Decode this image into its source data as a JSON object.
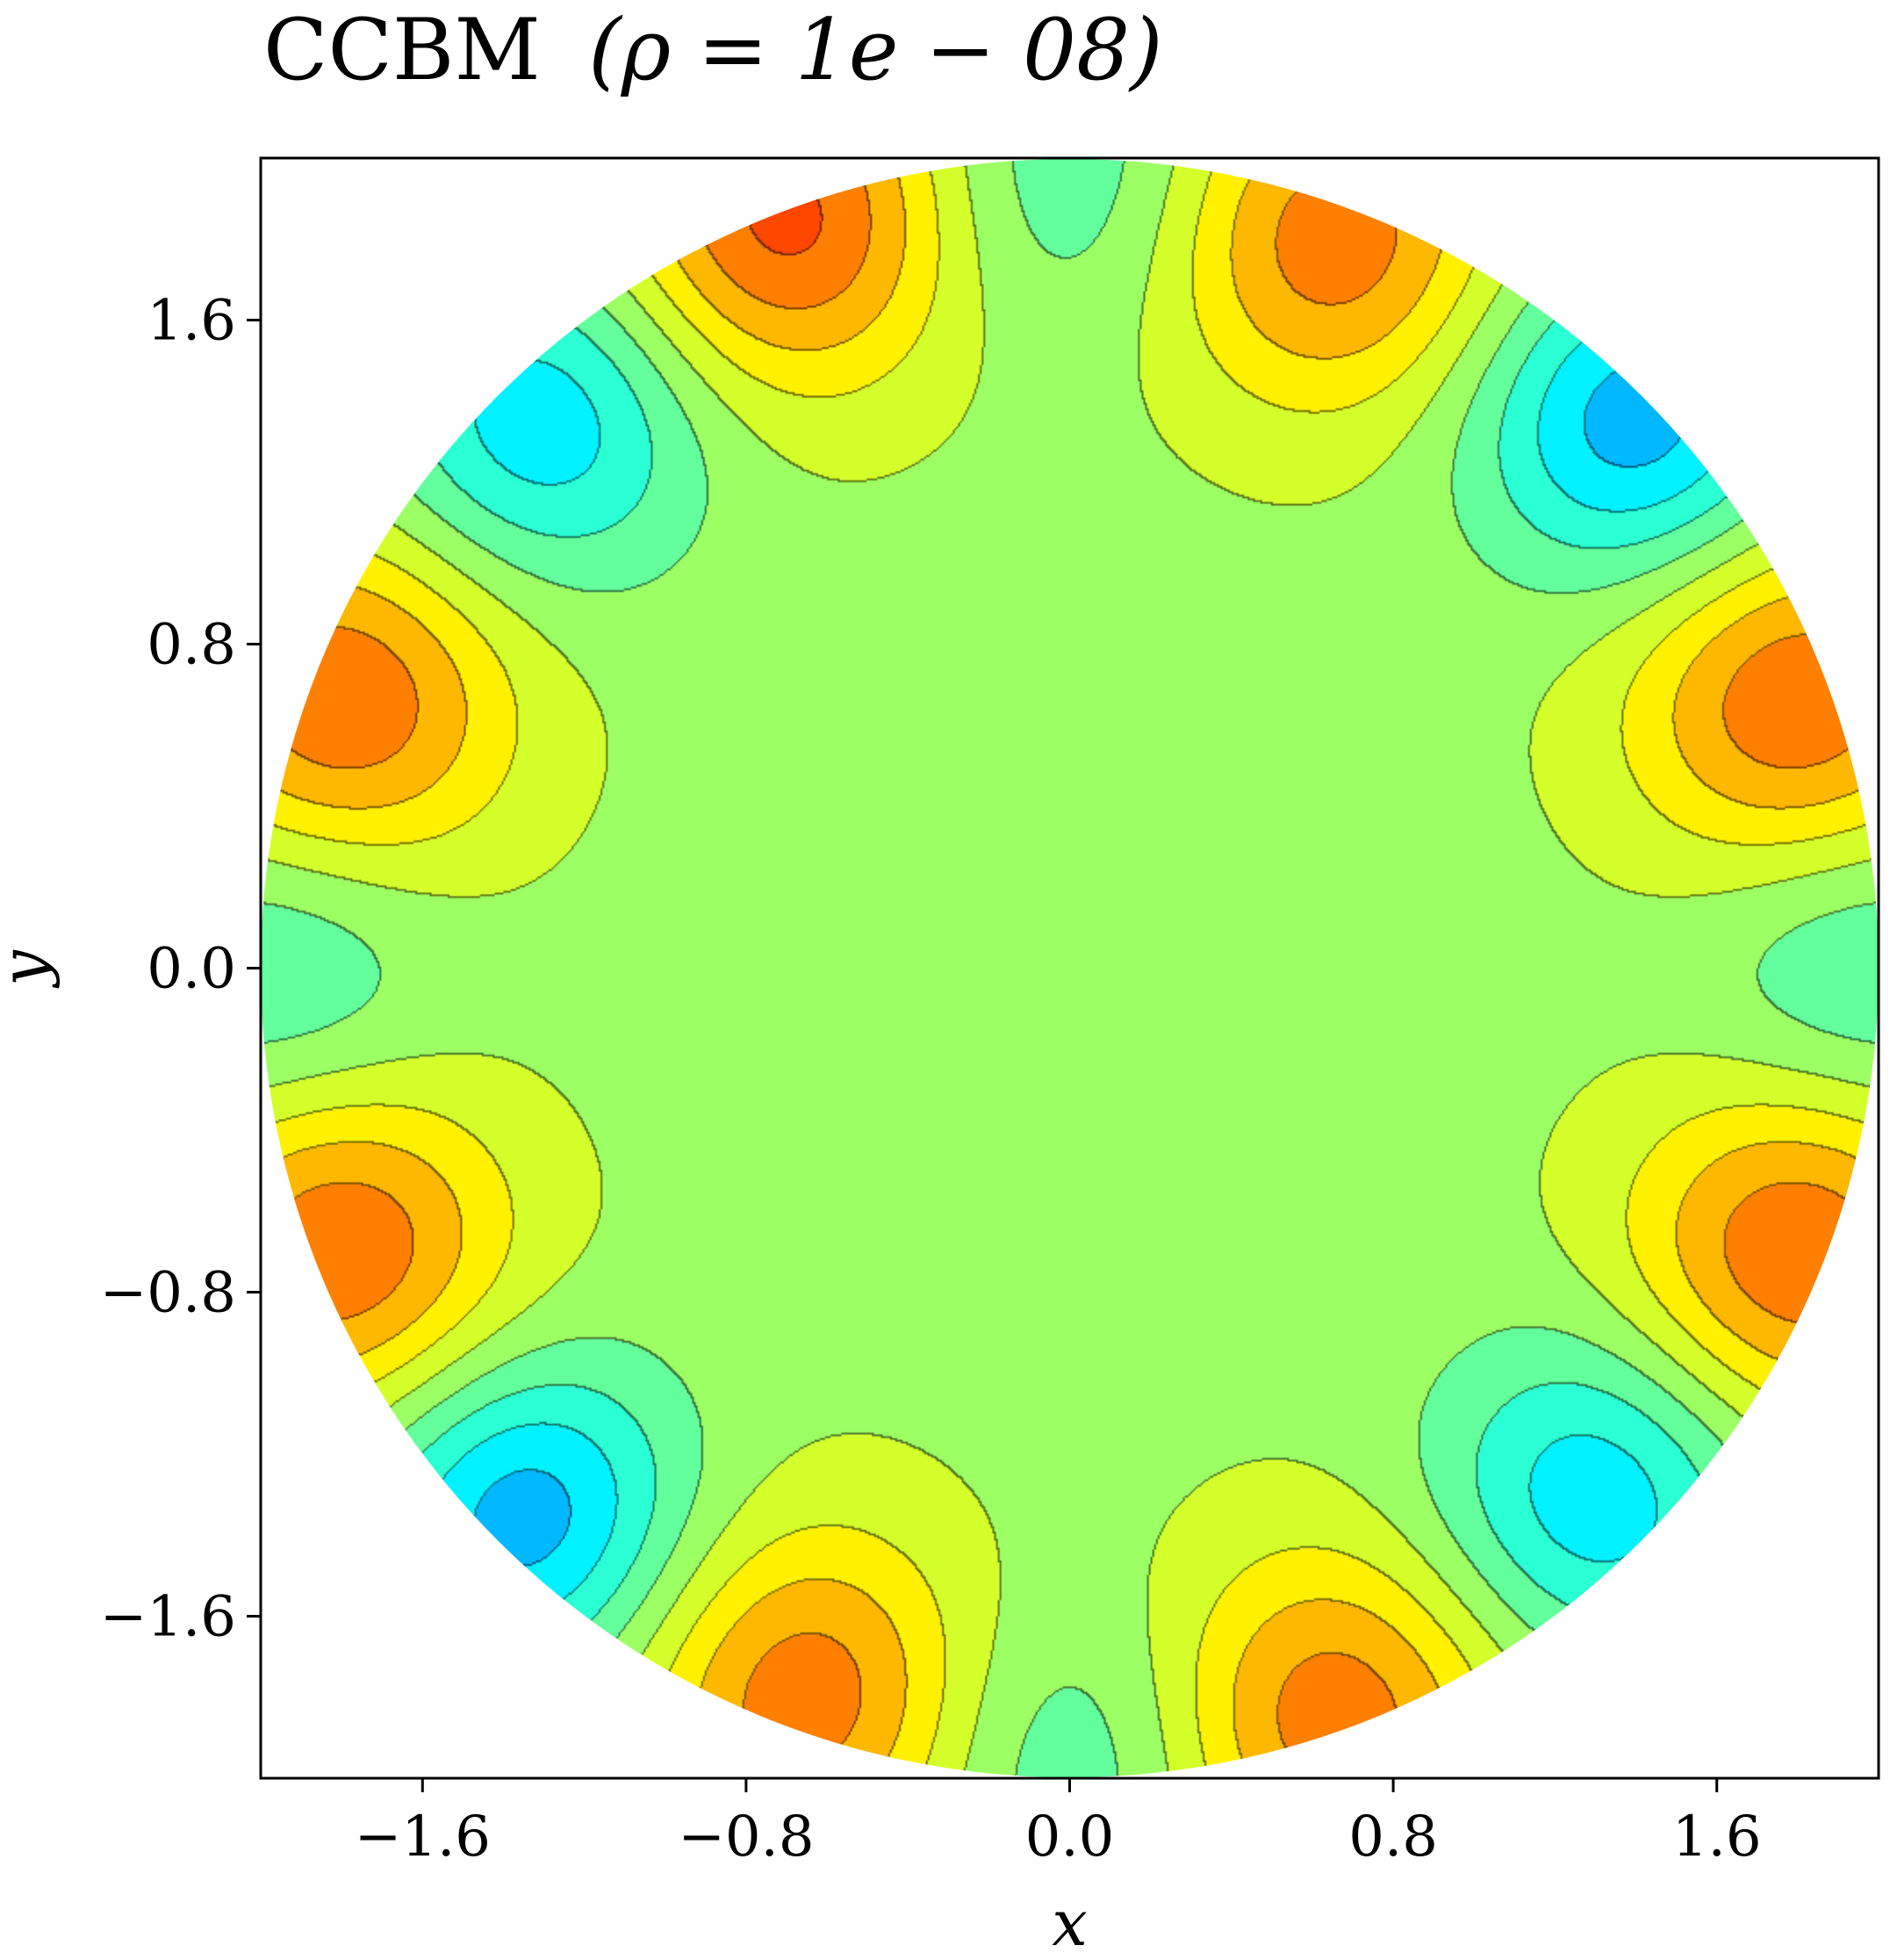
{
  "chart_data": {
    "type": "heatmap",
    "subtype": "filled-contour",
    "title": "CCBM (ρ = 1e − 08)",
    "title_parts": {
      "name": "CCBM",
      "expr": "(ρ = 1e − 08)"
    },
    "xlabel": "x",
    "ylabel": "y",
    "xlim": [
      -2.0,
      2.0
    ],
    "ylim": [
      -2.0,
      2.0
    ],
    "xticks": [
      -1.6,
      -0.8,
      0.0,
      0.8,
      1.6
    ],
    "yticks": [
      -1.6,
      -0.8,
      0.0,
      0.8,
      1.6
    ],
    "xtick_labels": [
      "−1.6",
      "−0.8",
      "0.0",
      "0.8",
      "1.6"
    ],
    "ytick_labels": [
      "−1.6",
      "−0.8",
      "0.0",
      "0.8",
      "1.6"
    ],
    "domain": {
      "shape": "disk",
      "center": [
        0,
        0
      ],
      "radius": 2.0
    },
    "colormap": "jet",
    "colorbar": false,
    "contour_line_color": "#333333",
    "grid": false,
    "legend": "none",
    "features": [
      {
        "kind": "high",
        "x": -0.7,
        "y": 1.85,
        "strength": 1.0
      },
      {
        "kind": "high",
        "x": 0.65,
        "y": 1.8,
        "strength": 0.85
      },
      {
        "kind": "high",
        "x": -1.8,
        "y": 0.65,
        "strength": 0.9
      },
      {
        "kind": "high",
        "x": 1.8,
        "y": 0.65,
        "strength": 0.9
      },
      {
        "kind": "high",
        "x": -1.8,
        "y": -0.7,
        "strength": 0.9
      },
      {
        "kind": "high",
        "x": 1.8,
        "y": -0.7,
        "strength": 0.9
      },
      {
        "kind": "high",
        "x": -0.65,
        "y": -1.8,
        "strength": 0.85
      },
      {
        "kind": "high",
        "x": 0.65,
        "y": -1.85,
        "strength": 0.85
      },
      {
        "kind": "low",
        "x": -1.3,
        "y": 1.35,
        "strength": 0.8
      },
      {
        "kind": "low",
        "x": 1.4,
        "y": 1.35,
        "strength": 1.0
      },
      {
        "kind": "low",
        "x": -1.35,
        "y": -1.35,
        "strength": 1.0
      },
      {
        "kind": "low",
        "x": 1.3,
        "y": -1.3,
        "strength": 0.8
      },
      {
        "kind": "low",
        "x": 0.0,
        "y": 1.95,
        "strength": 0.4
      },
      {
        "kind": "low",
        "x": 0.0,
        "y": -1.95,
        "strength": 0.4
      },
      {
        "kind": "low",
        "x": -1.95,
        "y": 0.0,
        "strength": 0.45
      },
      {
        "kind": "low",
        "x": 1.95,
        "y": 0.0,
        "strength": 0.45
      }
    ]
  }
}
